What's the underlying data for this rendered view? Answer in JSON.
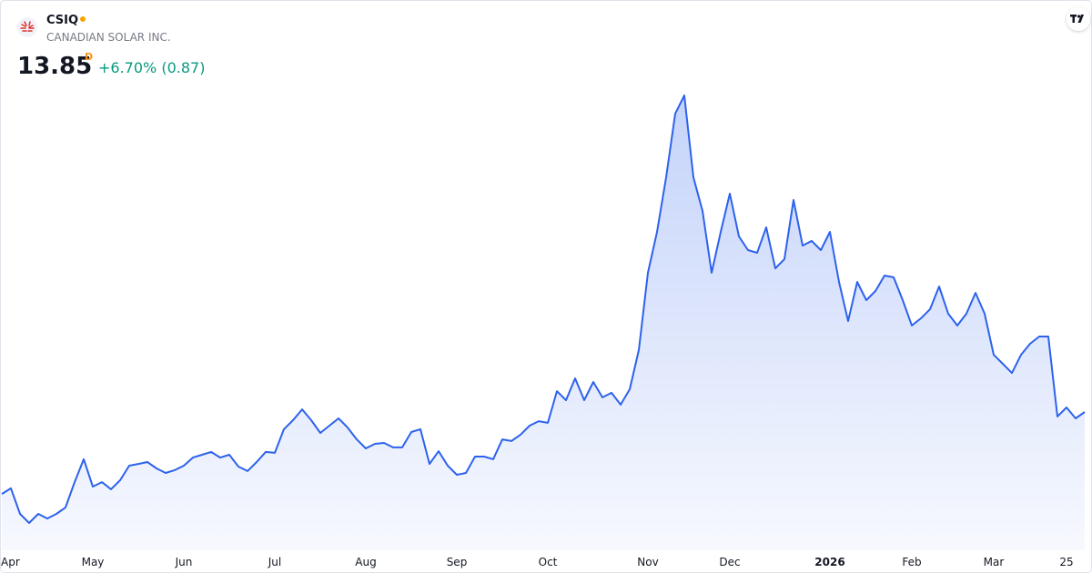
{
  "header": {
    "symbol": "CSIQ",
    "company": "CANADIAN SOLAR INC.",
    "last_price": 13.85,
    "interval": "D",
    "change": "+6.70% (0.87)"
  },
  "chart_data": {
    "type": "area",
    "color": "#2d62ec",
    "categories": [
      "Apr",
      null,
      null,
      null,
      null,
      null,
      null,
      null,
      null,
      null,
      "May",
      null,
      null,
      null,
      null,
      null,
      null,
      null,
      null,
      null,
      "Jun",
      null,
      null,
      null,
      null,
      null,
      null,
      null,
      null,
      null,
      "Jul",
      null,
      null,
      null,
      null,
      null,
      null,
      null,
      null,
      null,
      "Aug",
      null,
      null,
      null,
      null,
      null,
      null,
      null,
      null,
      null,
      "Sep",
      null,
      null,
      null,
      null,
      null,
      null,
      null,
      null,
      null,
      "Oct",
      null,
      null,
      null,
      null,
      null,
      null,
      null,
      null,
      null,
      null,
      "Nov",
      null,
      null,
      null,
      null,
      null,
      null,
      null,
      null,
      "Dec",
      null,
      null,
      null,
      null,
      null,
      null,
      null,
      null,
      null,
      null,
      "2026",
      null,
      null,
      null,
      null,
      null,
      null,
      null,
      null,
      "Feb",
      null,
      null,
      null,
      null,
      null,
      null,
      null,
      null,
      "Mar",
      null,
      null,
      null,
      null,
      null,
      null,
      null,
      "25",
      null,
      null
    ],
    "values": [
      8.58,
      8.94,
      7.3,
      6.71,
      7.3,
      7.0,
      7.3,
      7.71,
      9.34,
      10.81,
      9.05,
      9.34,
      8.88,
      9.46,
      10.4,
      10.51,
      10.63,
      10.22,
      9.93,
      10.11,
      10.4,
      10.92,
      11.1,
      11.28,
      10.92,
      11.1,
      10.34,
      10.05,
      10.63,
      11.28,
      11.22,
      12.74,
      13.32,
      14.02,
      13.32,
      12.5,
      12.97,
      13.44,
      12.85,
      12.09,
      11.51,
      11.8,
      11.86,
      11.57,
      11.57,
      12.56,
      12.74,
      10.51,
      11.33,
      10.4,
      9.81,
      9.93,
      10.98,
      10.98,
      10.81,
      12.09,
      11.98,
      12.39,
      12.97,
      13.26,
      13.15,
      15.19,
      14.61,
      16.01,
      14.61,
      15.78,
      14.79,
      15.08,
      14.32,
      15.31,
      17.83,
      22.8,
      25.43,
      28.94,
      33.04,
      34.21,
      28.94,
      26.78,
      22.8,
      25.43,
      27.89,
      25.14,
      24.26,
      24.09,
      25.72,
      23.09,
      23.68,
      27.48,
      24.55,
      24.85,
      24.26,
      25.43,
      22.21,
      19.7,
      22.21,
      21.04,
      21.63,
      22.62,
      22.51,
      21.04,
      19.41,
      19.87,
      20.46,
      21.92,
      20.17,
      19.41,
      20.17,
      21.51,
      20.17,
      17.53,
      16.95,
      16.36,
      17.53,
      18.24,
      18.7,
      18.7,
      13.56,
      14.14,
      13.44,
      13.85
    ],
    "ylim": [
      5.25,
      35.08
    ]
  }
}
